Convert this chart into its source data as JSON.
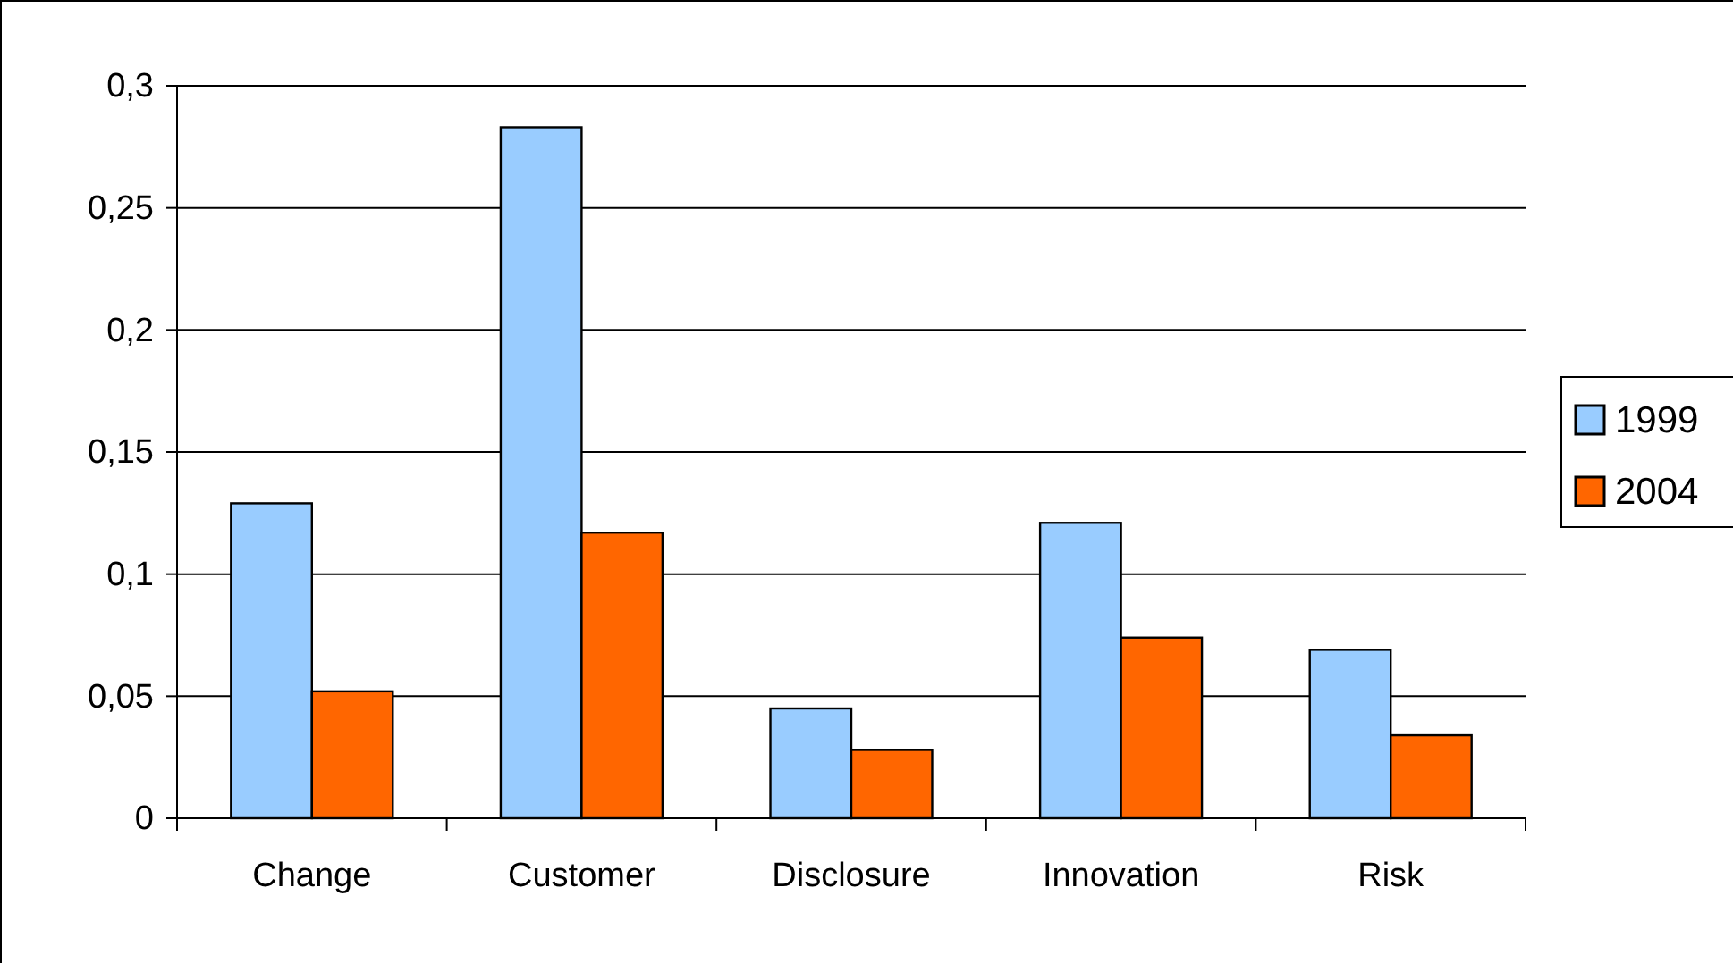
{
  "chart_data": {
    "type": "bar",
    "categories": [
      "Change",
      "Customer",
      "Disclosure",
      "Innovation",
      "Risk"
    ],
    "series": [
      {
        "name": "1999",
        "color": "#99ccff",
        "values": [
          0.129,
          0.283,
          0.045,
          0.121,
          0.069
        ]
      },
      {
        "name": "2004",
        "color": "#ff6600",
        "values": [
          0.052,
          0.117,
          0.028,
          0.074,
          0.034
        ]
      }
    ],
    "ylim": [
      0,
      0.3
    ],
    "yticks": [
      0,
      {
        "value": 0.05,
        "label": "0,05"
      },
      {
        "value": 0.1,
        "label": "0,1"
      },
      {
        "value": 0.15,
        "label": "0,15"
      },
      {
        "value": 0.2,
        "label": "0,2"
      },
      {
        "value": 0.25,
        "label": "0,25"
      },
      {
        "value": 0.3,
        "label": "0,3"
      }
    ],
    "grid": "y",
    "legend": "right"
  }
}
